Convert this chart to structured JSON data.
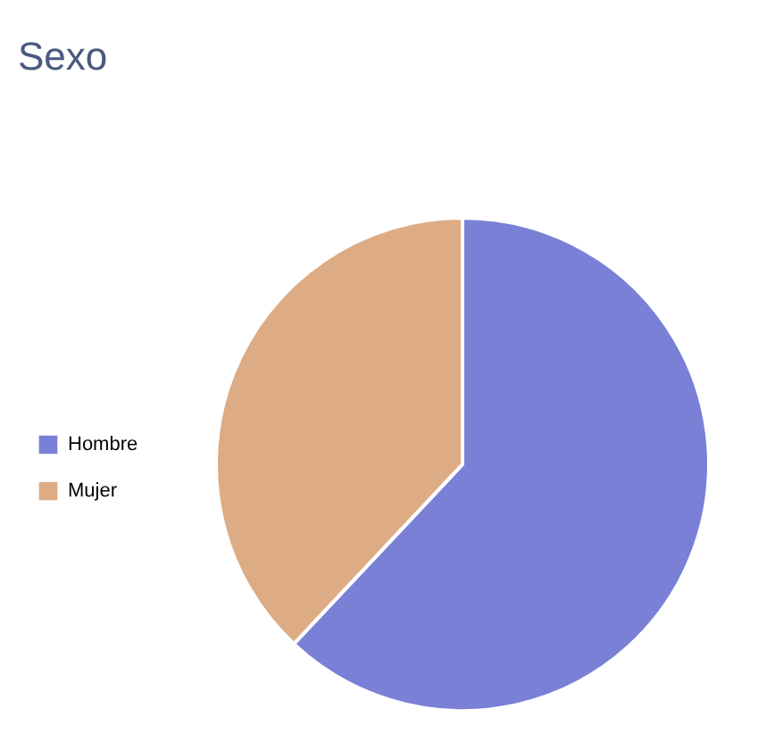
{
  "chart_data": {
    "type": "pie",
    "title": "Sexo",
    "categories": [
      "Hombre",
      "Mujer"
    ],
    "values": [
      62,
      38
    ],
    "colors": [
      "#7980d6",
      "#ddac84"
    ],
    "legend": "left"
  }
}
